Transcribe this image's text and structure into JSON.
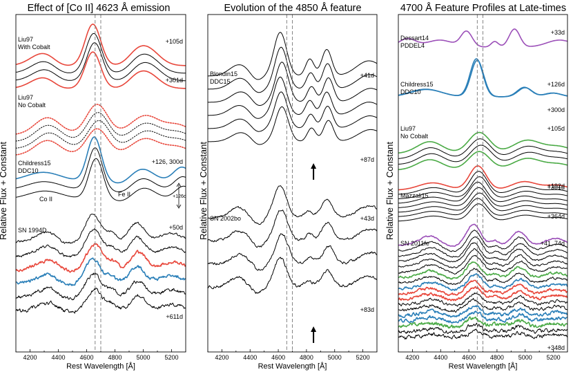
{
  "figure": {
    "ylabel": "Relative Flux + Constant",
    "xlabel": "Rest Wavelength [Å]",
    "colors": {
      "black": "#000000",
      "red": "#e8463a",
      "blue": "#2a7fb8",
      "purple": "#9b4fb8",
      "green": "#4aaa45"
    }
  },
  "chart_data": [
    {
      "type": "line",
      "title": "Effect of [Co II] 4623 Å emission",
      "xlabel": "Rest Wavelength [Å]",
      "ylabel": "Relative Flux + Constant",
      "xlim": [
        4100,
        5300
      ],
      "x_ticks": [
        4200,
        4400,
        4600,
        4800,
        5000,
        5200
      ],
      "x_tick_labels": [
        "4200",
        "4400",
        "4600",
        "4800",
        "5000",
        "5200"
      ],
      "vlines": [
        4660,
        4700
      ],
      "annotations": {
        "coII": "Co II",
        "feII": "Fe II",
        "scale": "+126d"
      },
      "groups": [
        {
          "label_lines": [
            "Liu97",
            "With Cobalt"
          ],
          "epochs": [
            "+105d",
            "+301d"
          ],
          "n": 4,
          "colors": [
            "#e8463a",
            "#000000",
            "#000000",
            "#e8463a"
          ],
          "dotted": false,
          "shape": "peak1"
        },
        {
          "label_lines": [
            "Liu97",
            "No Cobalt"
          ],
          "epochs": [],
          "n": 4,
          "colors": [
            "#e8463a",
            "#000000",
            "#000000",
            "#e8463a"
          ],
          "dotted": true,
          "shape": "peak2"
        },
        {
          "label_lines": [
            "Childress15",
            "DDC10"
          ],
          "epochs": [
            "+126, 300d"
          ],
          "n": 3,
          "colors": [
            "#2a7fb8",
            "#000000",
            "#000000"
          ],
          "dotted": false,
          "shape": "childress"
        },
        {
          "label_lines": [
            "SN 1994D"
          ],
          "epochs": [
            "+50d",
            "+611d"
          ],
          "n": 6,
          "colors": [
            "#000000",
            "#000000",
            "#e8463a",
            "#2a7fb8",
            "#000000",
            "#000000"
          ],
          "dotted": false,
          "shape": "obs"
        }
      ]
    },
    {
      "type": "line",
      "title": "Evolution of the 4850 Å feature",
      "xlabel": "Rest Wavelength [Å]",
      "ylabel": "Relative Flux + Constant",
      "xlim": [
        4100,
        5300
      ],
      "x_ticks": [
        4200,
        4400,
        4600,
        4800,
        5000,
        5200
      ],
      "x_tick_labels": [
        "4200",
        "4400",
        "4600",
        "4800",
        "5000",
        "5200"
      ],
      "vlines": [
        4660,
        4700
      ],
      "arrow_wavelength": 4850,
      "groups": [
        {
          "label_lines": [
            "Blondin15",
            "DDC15"
          ],
          "epochs": [
            "+41d",
            "+87d"
          ],
          "n": 6,
          "colors": [
            "#000000",
            "#000000",
            "#000000",
            "#000000",
            "#000000",
            "#000000"
          ],
          "dotted": false,
          "shape": "blondin"
        },
        {
          "label_lines": [
            "SN 2002bo"
          ],
          "epochs": [
            "+43d",
            "+83d"
          ],
          "n": 4,
          "colors": [
            "#000000",
            "#000000",
            "#000000",
            "#000000"
          ],
          "dotted": false,
          "shape": "sn2002bo"
        }
      ]
    },
    {
      "type": "line",
      "title": "4700 Å Feature Profiles at Late-times",
      "xlabel": "Rest Wavelength [Å]",
      "ylabel": "Relative Flux + Constant",
      "xlim": [
        4100,
        5300
      ],
      "x_ticks": [
        4200,
        4400,
        4600,
        4800,
        5000,
        5200
      ],
      "x_tick_labels": [
        "4200",
        "4400",
        "4600",
        "4800",
        "5000",
        "5200"
      ],
      "vlines": [
        4660,
        4700
      ],
      "groups": [
        {
          "label_lines": [
            "Dessart14",
            "PDDEL4"
          ],
          "epochs": [
            "+33d"
          ],
          "n": 1,
          "colors": [
            "#9b4fb8"
          ],
          "dotted": false,
          "shape": "dessart"
        },
        {
          "label_lines": [
            "Childress15",
            "DDC10"
          ],
          "epochs": [
            "+126d",
            "+300d"
          ],
          "n": 2,
          "colors": [
            "#2a7fb8",
            "#2a7fb8"
          ],
          "dotted": false,
          "shape": "childress3"
        },
        {
          "label_lines": [
            "Liu97",
            "No Cobalt"
          ],
          "epochs": [
            "+105d",
            "+301d"
          ],
          "n": 4,
          "colors": [
            "#4aaa45",
            "#000000",
            "#000000",
            "#4aaa45"
          ],
          "dotted": false,
          "shape": "peak2"
        },
        {
          "label_lines": [
            "Mazzali15"
          ],
          "epochs": [
            "+192d",
            "+364d"
          ],
          "n": 8,
          "colors": [
            "#e8463a",
            "#000000",
            "#000000",
            "#000000",
            "#000000",
            "#000000",
            "#000000",
            "#000000"
          ],
          "dotted": false,
          "shape": "mazzali"
        },
        {
          "label_lines": [
            "SN 2011fe"
          ],
          "epochs": [
            "+41, 74d",
            "+348d"
          ],
          "n": 18,
          "colors": [
            "#9b4fb8",
            "#000000",
            "#000000",
            "#000000",
            "#000000",
            "#000000",
            "#4aaa45",
            "#000000",
            "#2a7fb8",
            "#e8463a",
            "#e8463a",
            "#000000",
            "#000000",
            "#2a7fb8",
            "#2a7fb8",
            "#4aaa45",
            "#000000",
            "#000000"
          ],
          "dotted": false,
          "shape": "obs2011fe"
        }
      ]
    }
  ]
}
